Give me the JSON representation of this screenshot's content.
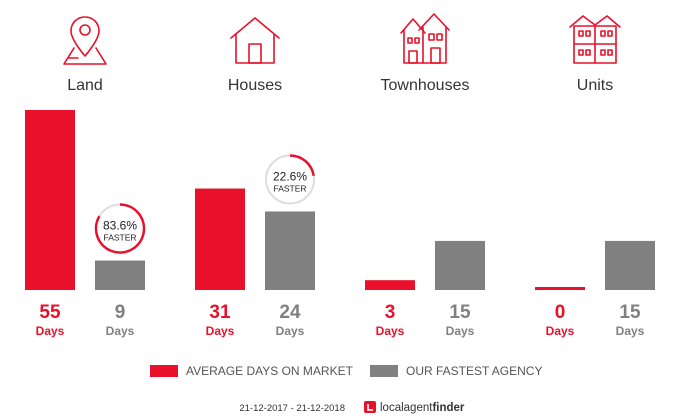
{
  "chart_data": {
    "type": "bar",
    "categories": [
      "Land",
      "Houses",
      "Townhouses",
      "Units"
    ],
    "series": [
      {
        "name": "AVERAGE DAYS ON MARKET",
        "values": [
          55,
          31,
          3,
          0
        ]
      },
      {
        "name": "OUR FASTEST AGENCY",
        "values": [
          9,
          24,
          15,
          15
        ]
      }
    ],
    "unit": "Days",
    "badges": [
      {
        "category": "Land",
        "percent": "83.6%",
        "word": "FASTER",
        "fraction": 0.836
      },
      {
        "category": "Houses",
        "percent": "22.6%",
        "word": "FASTER",
        "fraction": 0.226
      }
    ],
    "ylim": [
      0,
      55
    ],
    "grid": false,
    "legend_position": "bottom"
  },
  "footer": {
    "date_range": "21-12-2017 - 21-12-2018",
    "brand_light": "localagent",
    "brand_bold": "finder"
  },
  "colors": {
    "accent": "#e8102a",
    "secondary": "#808080",
    "badge_ring": "#dddddd",
    "text": "#333333"
  },
  "icons": [
    "map-pin-icon",
    "house-icon",
    "townhouse-icon",
    "units-icon"
  ]
}
